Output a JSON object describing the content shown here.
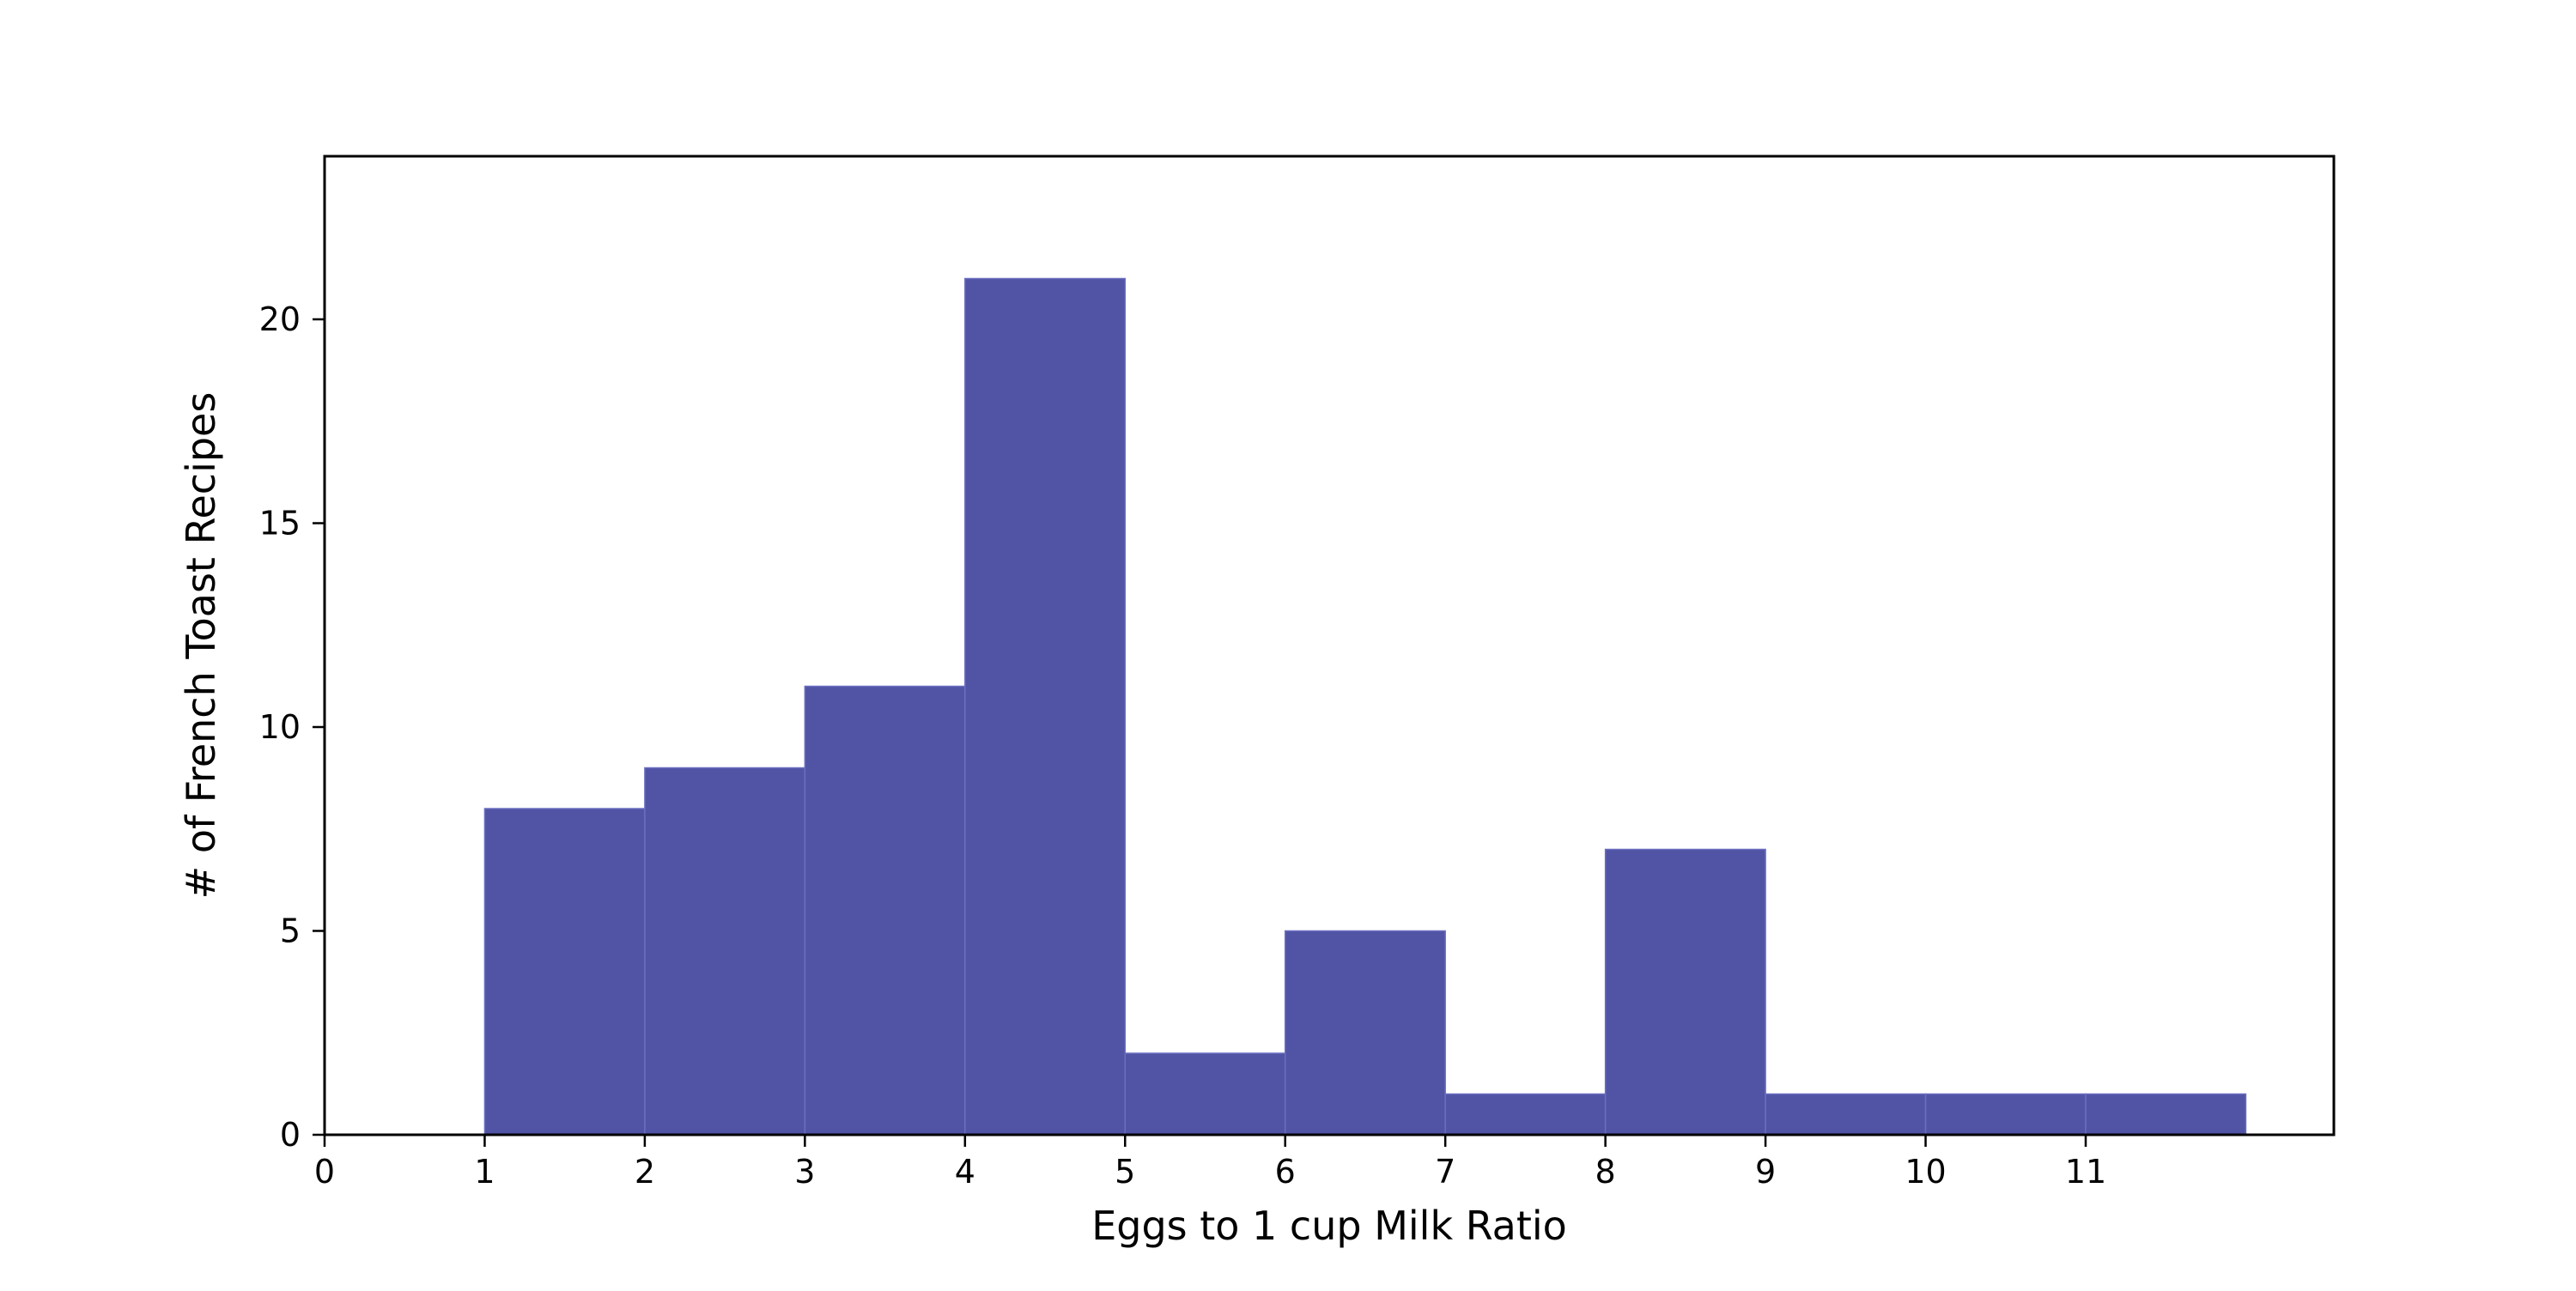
{
  "chart_data": {
    "type": "bar",
    "subtype": "histogram",
    "title": "",
    "xlabel": "Eggs to 1 cup Milk Ratio",
    "ylabel": "# of French Toast Recipes",
    "bins": [
      {
        "start": 1,
        "end": 2,
        "value": 8
      },
      {
        "start": 2,
        "end": 3,
        "value": 9
      },
      {
        "start": 3,
        "end": 4,
        "value": 11
      },
      {
        "start": 4,
        "end": 5,
        "value": 21
      },
      {
        "start": 5,
        "end": 6,
        "value": 2
      },
      {
        "start": 6,
        "end": 7,
        "value": 5
      },
      {
        "start": 7,
        "end": 8,
        "value": 1
      },
      {
        "start": 8,
        "end": 9,
        "value": 7
      },
      {
        "start": 9,
        "end": 10,
        "value": 1
      },
      {
        "start": 10,
        "end": 11,
        "value": 1
      },
      {
        "start": 11,
        "end": 12,
        "value": 1
      }
    ],
    "xlim": [
      0,
      12.55
    ],
    "ylim": [
      0,
      24
    ],
    "xticks": [
      0,
      1,
      2,
      3,
      4,
      5,
      6,
      7,
      8,
      9,
      10,
      11
    ],
    "yticks": [
      0,
      5,
      10,
      15,
      20
    ],
    "grid": false,
    "legend": "none",
    "bar_color": "#5154a4",
    "bar_edge_color": "#6a6ec0"
  }
}
